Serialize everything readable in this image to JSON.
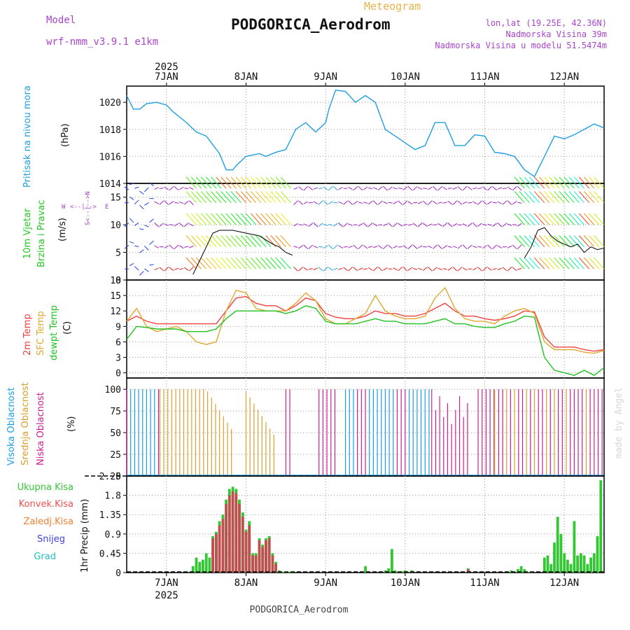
{
  "header": {
    "model_label": "Model",
    "model_value": "wrf-nmm_v3.9.1 e1km",
    "title": "PODGORICA_Aerodrom",
    "meteogram": "Meteogram",
    "lonlat": "lon,lat (19.25E, 42.36N)",
    "elevation": "Nadmorska Visina 39m",
    "model_elevation": "Nadmorska Visina u modelu 51.5474m",
    "footer": "PODGORICA_Aerodrom",
    "watermark": "made by Angel"
  },
  "colors": {
    "pressure": "#1e9fe0",
    "wind_label": "#1ec81e",
    "temp2m": "#f04040",
    "sfc": "#e0a830",
    "dew": "#20c020",
    "cloud_high": "#1a9fe6",
    "cloud_mid": "#d8a030",
    "cloud_low": "#cc2090",
    "precip_total": "#33c833",
    "precip_conv": "#c05050",
    "precip_frz": "#f08030",
    "snow": "#4040e0",
    "grad": "#20c0c0",
    "purple": "#aa44cc"
  },
  "axes": {
    "year": "2025",
    "days": [
      "7JAN",
      "8JAN",
      "9JAN",
      "10JAN",
      "11JAN",
      "12JAN"
    ],
    "hours_total": 144
  },
  "panels": {
    "pressure": {
      "label1": "Pritisak na nivou mora",
      "unit": "(hPa)",
      "ticks": [
        "1014",
        "1016",
        "1018",
        "1020"
      ]
    },
    "wind": {
      "label1": "10m Vjetar",
      "label2": "Brzina i Pravac",
      "unit": "(m/s)",
      "compass_w": "W",
      "compass_e": "E",
      "compass_arrows": "<--|-->",
      "compass_vert": "S<--|-->N",
      "ticks": [
        "0",
        "5",
        "10",
        "15"
      ]
    },
    "temp": {
      "label1": "2m Temp",
      "label2": "SFC Temp",
      "label3": "dewpt Temp",
      "unit": "(C)",
      "ticks": [
        "0",
        "3",
        "6",
        "9",
        "12",
        "15",
        "18"
      ]
    },
    "cloud": {
      "label1": "Visoka Oblacnost",
      "label2": "Srednja Oblacnost",
      "label3": "Niska Oblacnost",
      "unit": "(%)",
      "ticks": [
        "0",
        "25",
        "50",
        "75",
        "100"
      ]
    },
    "precip": {
      "legend": [
        "Ukupna Kisa",
        "Konvek.Kisa",
        "Zaledj.Kisa",
        "Snijeg",
        "Grad"
      ],
      "unit": "1hr Precip (mm)",
      "ticks": [
        "0",
        "0.45",
        "0.9",
        "1.35",
        "1.8",
        "2.25"
      ]
    }
  },
  "chart_data": [
    {
      "type": "line",
      "title": "Pritisak na nivou mora",
      "ylabel": "(hPa)",
      "ylim": [
        1014,
        1021.2
      ],
      "x_unit": "hours from 2025-01-06 12UTC",
      "series": [
        {
          "name": "Pritisak na nivou mora",
          "x": [
            0,
            2,
            4,
            6,
            9,
            12,
            14,
            18,
            21,
            24,
            28,
            30,
            32,
            33,
            36,
            40,
            42,
            45,
            48,
            51,
            54,
            57,
            60,
            61,
            63,
            66,
            69,
            72,
            75,
            78,
            81,
            84,
            87,
            90,
            93,
            96,
            99,
            102,
            105,
            108,
            111,
            114,
            117,
            120,
            123,
            126,
            129,
            132,
            135,
            138,
            141,
            144
          ],
          "values": [
            1020.5,
            1019.5,
            1019.5,
            1019.9,
            1020.0,
            1019.8,
            1019.3,
            1018.5,
            1017.8,
            1017.5,
            1016.2,
            1015.0,
            1015.0,
            1015.3,
            1016.0,
            1016.2,
            1016.0,
            1016.3,
            1016.5,
            1018.0,
            1018.5,
            1017.8,
            1018.5,
            1019.5,
            1020.9,
            1020.8,
            1020.0,
            1020.5,
            1020.0,
            1018.0,
            1017.5,
            1017.0,
            1016.5,
            1016.8,
            1018.5,
            1018.5,
            1016.8,
            1016.8,
            1017.6,
            1017.5,
            1016.3,
            1016.2,
            1016.0,
            1015.0,
            1014.5,
            1016.0,
            1017.5,
            1017.3,
            1017.6,
            1018.0,
            1018.4,
            1018.1
          ]
        }
      ]
    },
    {
      "type": "line",
      "title": "10m Vjetar Brzina i Pravac",
      "ylabel": "(m/s)",
      "ylim": [
        0,
        17.5
      ],
      "series": [
        {
          "name": "Brzina",
          "x": [
            20,
            22,
            24,
            26,
            28,
            30,
            32,
            36,
            40,
            44,
            46,
            48,
            50,
            120,
            122,
            124,
            126,
            128,
            130,
            132,
            134,
            136,
            138,
            140,
            142,
            144
          ],
          "values": [
            1.0,
            3.5,
            6.0,
            8.5,
            9.0,
            9.0,
            9.0,
            8.5,
            8.0,
            6.5,
            6.0,
            5.0,
            4.5,
            4.0,
            6.0,
            9.0,
            9.5,
            8.0,
            7.0,
            6.5,
            6.0,
            6.5,
            5.0,
            6.0,
            5.5,
            5.8
          ]
        }
      ]
    },
    {
      "type": "line",
      "title": "Temperatura",
      "ylabel": "(C)",
      "ylim": [
        -1,
        18
      ],
      "x": [
        0,
        3,
        6,
        9,
        12,
        15,
        18,
        21,
        24,
        27,
        30,
        33,
        36,
        39,
        42,
        45,
        48,
        51,
        54,
        57,
        60,
        63,
        66,
        69,
        72,
        75,
        78,
        81,
        84,
        87,
        90,
        93,
        96,
        99,
        102,
        105,
        108,
        111,
        114,
        117,
        120,
        123,
        126,
        129,
        132,
        135,
        138,
        141,
        144
      ],
      "series": [
        {
          "name": "2m Temp",
          "values": [
            10,
            11,
            10,
            9.5,
            9.5,
            9.5,
            9.5,
            9.5,
            9.5,
            9.5,
            12,
            14.5,
            14.8,
            13.5,
            13,
            13,
            12,
            13,
            14.5,
            14,
            11.5,
            10.8,
            10.5,
            10.5,
            11,
            12,
            11.5,
            11.5,
            11,
            11,
            11.5,
            12.5,
            13.5,
            12,
            11,
            11,
            10.5,
            10.2,
            10.5,
            11,
            12,
            11.8,
            7,
            5,
            5,
            5,
            4.5,
            4.2,
            4.5
          ]
        },
        {
          "name": "SFC Temp",
          "values": [
            10,
            12.5,
            9,
            8,
            8.5,
            9,
            8,
            6,
            5.5,
            6,
            12,
            16,
            15.5,
            12.5,
            12,
            12,
            12,
            13.5,
            15.5,
            14,
            10.5,
            9.5,
            9.5,
            10.5,
            11.5,
            15,
            12,
            11,
            10.5,
            10.5,
            11,
            14.5,
            16.5,
            12.5,
            10.5,
            10,
            10,
            9.5,
            11,
            12,
            12.5,
            11.5,
            6,
            4.5,
            4.5,
            4.5,
            4,
            3.8,
            4.3
          ]
        },
        {
          "name": "dewpt Temp",
          "values": [
            6.5,
            9,
            8.8,
            8.5,
            8.5,
            8.5,
            8,
            8,
            8,
            8.5,
            10.5,
            12,
            12,
            12,
            12,
            12,
            11.5,
            12,
            13,
            12.5,
            10,
            9.5,
            9.5,
            9.5,
            10,
            10.5,
            10,
            10,
            9.5,
            9.5,
            9.5,
            10,
            10.5,
            9.5,
            9.5,
            9,
            8.8,
            8.8,
            9.5,
            10,
            11,
            10.8,
            3,
            0.5,
            0,
            -0.5,
            0.5,
            -0.5,
            1
          ]
        }
      ]
    },
    {
      "type": "bar",
      "title": "Oblacnost",
      "ylabel": "(%)",
      "ylim": [
        0,
        100
      ],
      "note": "hourly bars, 0-100%"
    },
    {
      "type": "bar",
      "title": "1hr Precip",
      "ylabel": "(mm)",
      "ylim": [
        0,
        2.25
      ],
      "series": [
        {
          "name": "Ukupna Kisa",
          "x": [
            20,
            21,
            22,
            23,
            24,
            25,
            26,
            27,
            28,
            29,
            30,
            31,
            32,
            33,
            34,
            35,
            36,
            37,
            38,
            39,
            40,
            41,
            42,
            43,
            44,
            45,
            46,
            47,
            48,
            49,
            50,
            72,
            78,
            79,
            80,
            81,
            82,
            83,
            84,
            86,
            103,
            116,
            118,
            119,
            120,
            121,
            122,
            126,
            127,
            128,
            129,
            130,
            131,
            132,
            133,
            134,
            135,
            136,
            137,
            138,
            139,
            140,
            141,
            142,
            143
          ],
          "values": [
            0.15,
            0.35,
            0.25,
            0.3,
            0.45,
            0.35,
            0.85,
            0.95,
            1.2,
            1.35,
            1.7,
            1.95,
            2.0,
            1.95,
            1.7,
            1.4,
            1.0,
            1.2,
            0.45,
            0.45,
            0.8,
            0.65,
            0.8,
            0.85,
            0.45,
            0.25,
            0.05,
            0.02,
            0.02,
            0.02,
            0.02,
            0.15,
            0.05,
            0.1,
            0.55,
            0.05,
            0.02,
            0.03,
            0.05,
            0.05,
            0.1,
            0.05,
            0.08,
            0.15,
            0.08,
            0.02,
            0.02,
            0.35,
            0.4,
            0.2,
            0.7,
            1.3,
            0.9,
            0.45,
            0.3,
            0.2,
            1.2,
            0.4,
            0.45,
            0.4,
            0.2,
            0.35,
            0.45,
            0.85,
            2.15
          ]
        },
        {
          "name": "Konvek.Kisa",
          "x": [
            26,
            27,
            28,
            29,
            30,
            31,
            32,
            33,
            34,
            35,
            36,
            37,
            38,
            39,
            40,
            41,
            42,
            43,
            44,
            45,
            103
          ],
          "values": [
            0.8,
            0.9,
            1.1,
            1.25,
            1.6,
            1.8,
            1.9,
            1.85,
            1.6,
            1.3,
            0.95,
            1.1,
            0.4,
            0.4,
            0.75,
            0.6,
            0.75,
            0.8,
            0.4,
            0.2,
            0.08
          ]
        }
      ]
    }
  ]
}
